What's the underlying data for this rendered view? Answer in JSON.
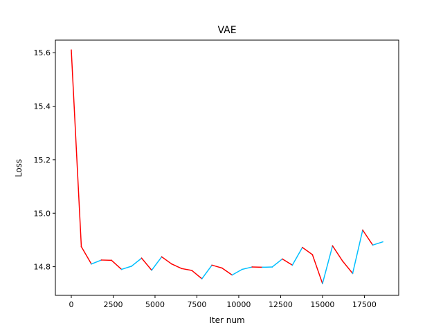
{
  "chart_data": {
    "type": "line",
    "title": "VAE",
    "xlabel": "Iter num",
    "ylabel": "Loss",
    "xlim": [
      -950,
      19550
    ],
    "ylim": [
      14.693,
      15.647
    ],
    "xticks": [
      0,
      2500,
      5000,
      7500,
      10000,
      12500,
      15000,
      17500
    ],
    "xtick_labels": [
      "0",
      "2500",
      "5000",
      "7500",
      "10000",
      "12500",
      "15000",
      "17500"
    ],
    "yticks": [
      14.8,
      15.0,
      15.2,
      15.4,
      15.6
    ],
    "ytick_labels": [
      "14.8",
      "15.0",
      "15.2",
      "15.4",
      "15.6"
    ],
    "grid": false,
    "legend": "none",
    "segment_colors": {
      "decrease": "#ff0000",
      "increase": "#00bfff"
    },
    "x": [
      0,
      600,
      1200,
      1800,
      2400,
      3000,
      3600,
      4200,
      4800,
      5400,
      6000,
      6600,
      7200,
      7800,
      8400,
      9000,
      9600,
      10200,
      10800,
      11400,
      12000,
      12600,
      13200,
      13800,
      14400,
      15000,
      15600,
      16200,
      16800,
      17400,
      18000,
      18600
    ],
    "y": [
      15.61,
      14.875,
      14.81,
      14.825,
      14.824,
      14.79,
      14.802,
      14.832,
      14.787,
      14.837,
      14.81,
      14.793,
      14.786,
      14.755,
      14.806,
      14.795,
      14.769,
      14.79,
      14.799,
      14.798,
      14.799,
      14.829,
      14.806,
      14.872,
      14.845,
      14.737,
      14.878,
      14.821,
      14.775,
      14.937,
      14.881,
      14.893
    ]
  }
}
